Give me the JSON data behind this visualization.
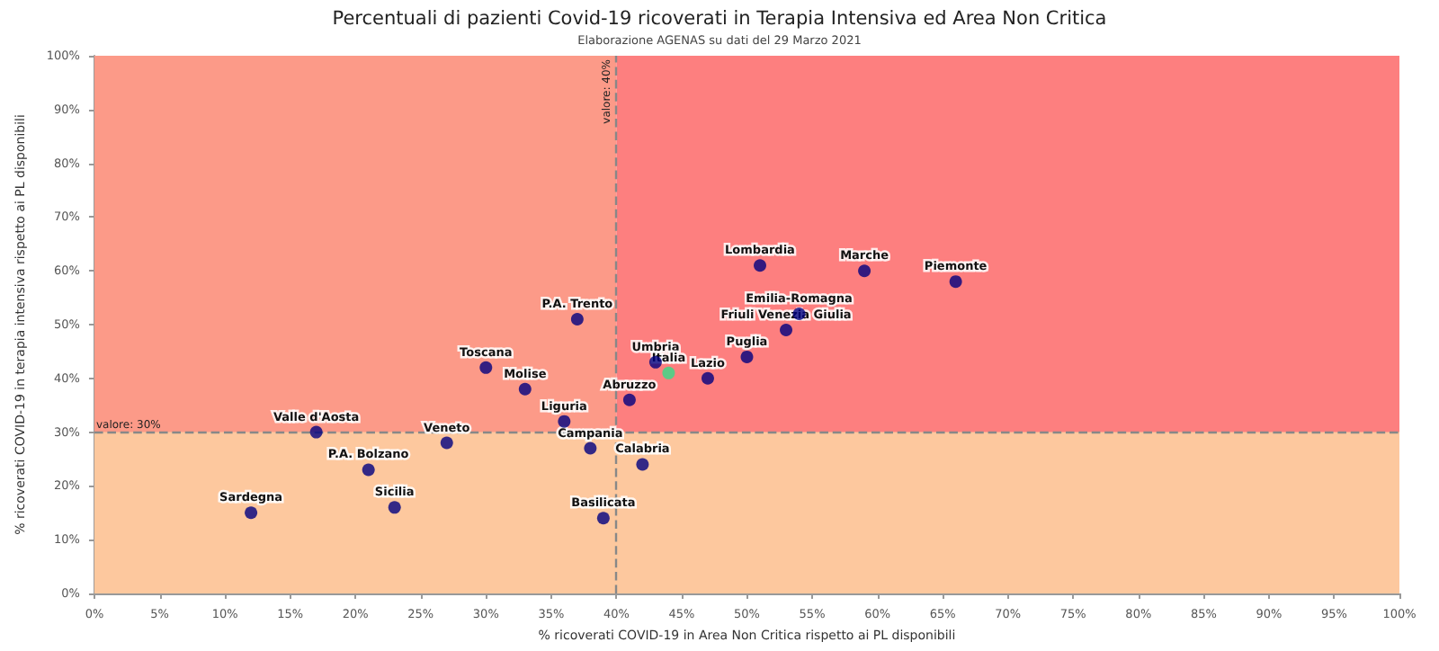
{
  "chart_data": {
    "type": "scatter",
    "title": "Percentuali di pazienti Covid-19 ricoverati in Terapia Intensiva ed Area Non Critica",
    "subtitle": "Elaborazione AGENAS su dati del 29 Marzo 2021",
    "xlabel": "% ricoverati COVID-19 in Area Non Critica rispetto ai PL disponibili",
    "ylabel": "% ricoverati COVID-19 in terapia intensiva rispetto ai PL disponibili",
    "series": [
      {
        "color": "#000080",
        "x": [
          51,
          59,
          66,
          54,
          53,
          50,
          47,
          43,
          41,
          37,
          30,
          33,
          36,
          17,
          27,
          38,
          21,
          23,
          12,
          39,
          42
        ],
        "values": [
          61,
          60,
          58,
          52,
          49,
          44,
          40,
          43,
          36,
          51,
          42,
          38,
          32,
          30,
          28,
          27,
          23,
          16,
          15,
          14,
          24
        ]
      },
      {
        "color": "#33dd88",
        "x": [
          44
        ],
        "values": [
          41
        ]
      }
    ],
    "annotations": [
      {
        "text": "Lombardia",
        "x": 51,
        "y": 61
      },
      {
        "text": "Marche",
        "x": 59,
        "y": 60
      },
      {
        "text": "Piemonte",
        "x": 66,
        "y": 58
      },
      {
        "text": "Emilia-Romagna",
        "x": 54,
        "y": 52
      },
      {
        "text": "Friuli Venezia Giulia",
        "x": 53,
        "y": 49
      },
      {
        "text": "Puglia",
        "x": 50,
        "y": 44
      },
      {
        "text": "Lazio",
        "x": 47,
        "y": 40
      },
      {
        "text": "Umbria",
        "x": 43,
        "y": 43
      },
      {
        "text": "Italia",
        "x": 44,
        "y": 41
      },
      {
        "text": "Abruzzo",
        "x": 41,
        "y": 36
      },
      {
        "text": "P.A. Trento",
        "x": 37,
        "y": 51
      },
      {
        "text": "Toscana",
        "x": 30,
        "y": 42
      },
      {
        "text": "Molise",
        "x": 33,
        "y": 38
      },
      {
        "text": "Liguria",
        "x": 36,
        "y": 32
      },
      {
        "text": "Valle d'Aosta",
        "x": 17,
        "y": 30
      },
      {
        "text": "Veneto",
        "x": 27,
        "y": 28
      },
      {
        "text": "Campania",
        "x": 38,
        "y": 27
      },
      {
        "text": "P.A. Bolzano",
        "x": 21,
        "y": 23
      },
      {
        "text": "Sicilia",
        "x": 23,
        "y": 16
      },
      {
        "text": "Sardegna",
        "x": 12,
        "y": 15
      },
      {
        "text": "Basilicata",
        "x": 39,
        "y": 14
      },
      {
        "text": "Calabria",
        "x": 42,
        "y": 24
      }
    ],
    "ref_lines": [
      {
        "axis": "x",
        "value": 40,
        "label": "valore: 40%",
        "color": "#888888",
        "line_style": "dashed"
      },
      {
        "axis": "y",
        "value": 30,
        "label": "valore: 30%",
        "color": "#888888",
        "line_style": "dashed"
      }
    ],
    "bands": [
      {
        "axis": "x",
        "from": 0,
        "to": 40,
        "color": "#fc9a88"
      },
      {
        "axis": "x",
        "from": 40,
        "to": 100,
        "color": "#fd7f7f"
      },
      {
        "axis": "y",
        "from": 0,
        "to": 30,
        "color": "#fdc89e"
      }
    ],
    "xlim": [
      0,
      100
    ],
    "ylim": [
      0,
      100
    ],
    "xticks": [
      {
        "value": 0,
        "label": "0%"
      },
      {
        "value": 5,
        "label": "5%"
      },
      {
        "value": 10,
        "label": "10%"
      },
      {
        "value": 15,
        "label": "15%"
      },
      {
        "value": 20,
        "label": "20%"
      },
      {
        "value": 25,
        "label": "25%"
      },
      {
        "value": 30,
        "label": "30%"
      },
      {
        "value": 35,
        "label": "35%"
      },
      {
        "value": 40,
        "label": "40%"
      },
      {
        "value": 45,
        "label": "45%"
      },
      {
        "value": 50,
        "label": "50%"
      },
      {
        "value": 55,
        "label": "55%"
      },
      {
        "value": 60,
        "label": "60%"
      },
      {
        "value": 65,
        "label": "65%"
      },
      {
        "value": 70,
        "label": "70%"
      },
      {
        "value": 75,
        "label": "75%"
      },
      {
        "value": 80,
        "label": "80%"
      },
      {
        "value": 85,
        "label": "85%"
      },
      {
        "value": 90,
        "label": "90%"
      },
      {
        "value": 95,
        "label": "95%"
      },
      {
        "value": 100,
        "label": "100%"
      }
    ],
    "yticks": [
      {
        "value": 0,
        "label": "0%"
      },
      {
        "value": 10,
        "label": "10%"
      },
      {
        "value": 20,
        "label": "20%"
      },
      {
        "value": 30,
        "label": "30%"
      },
      {
        "value": 40,
        "label": "40%"
      },
      {
        "value": 50,
        "label": "50%"
      },
      {
        "value": 60,
        "label": "60%"
      },
      {
        "value": 70,
        "label": "70%"
      },
      {
        "value": 80,
        "label": "80%"
      },
      {
        "value": 90,
        "label": "90%"
      },
      {
        "value": 100,
        "label": "100%"
      }
    ],
    "marker": "circle"
  }
}
